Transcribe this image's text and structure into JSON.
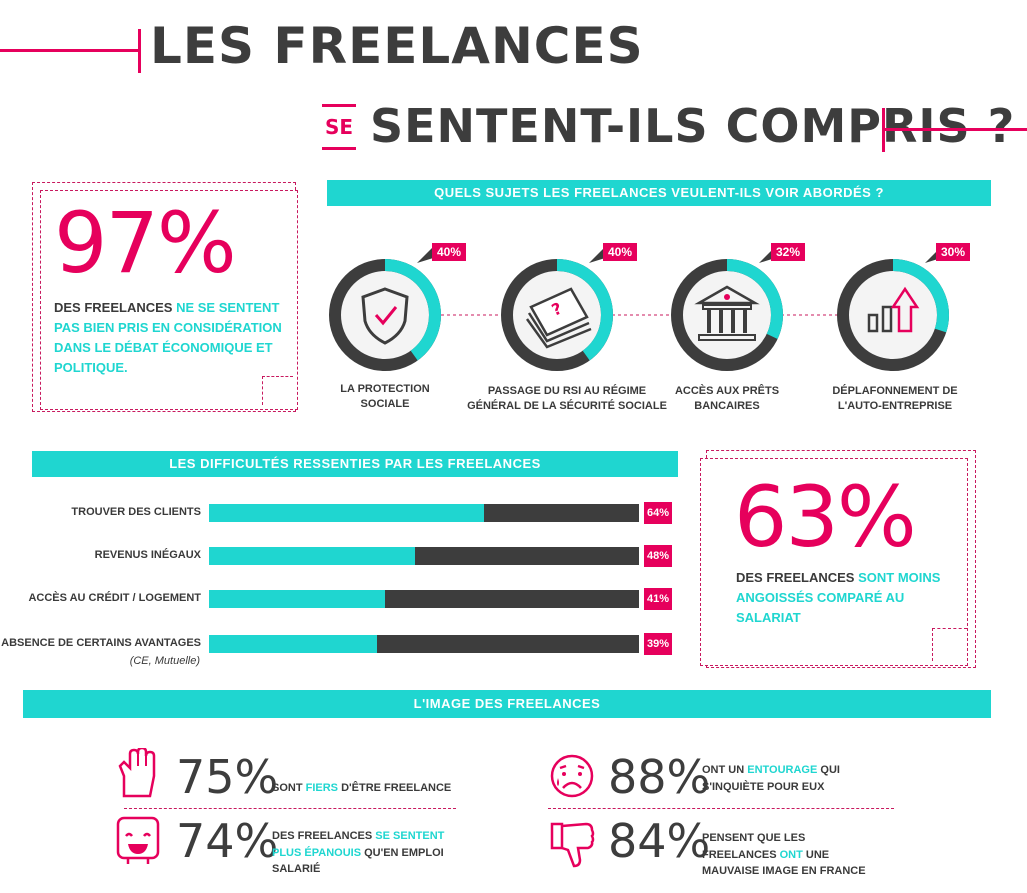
{
  "header": {
    "title_line1": "LES FREELANCES",
    "title_se": "SE",
    "title_line2": "SENTENT-ILS COMPRIS ?"
  },
  "stat97": {
    "value": "97%",
    "text_dark": "DES FREELANCES",
    "text_teal": "NE SE SENTENT PAS BIEN PRIS EN CONSIDÉRATION DANS LE DÉBAT ÉCONOMIQUE ET POLITIQUE."
  },
  "topics": {
    "banner": "QUELS SUJETS LES FREELANCES VEULENT-ILS VOIR ABORDÉS ?",
    "items": [
      {
        "label_line1": "LA PROTECTION",
        "label_line2": "SOCIALE",
        "pct": "40%",
        "icon": "shield-check-icon"
      },
      {
        "label_line1": "PASSAGE DU RSI AU RÉGIME",
        "label_line2": "GÉNÉRAL DE LA SÉCURITÉ SOCIALE",
        "pct": "40%",
        "icon": "documents-icon"
      },
      {
        "label_line1": "ACCÈS AUX PRÊTS",
        "label_line2": "BANCAIRES",
        "pct": "32%",
        "icon": "bank-icon"
      },
      {
        "label_line1": "DÉPLAFONNEMENT DE",
        "label_line2": "L'AUTO-ENTREPRISE",
        "pct": "30%",
        "icon": "growth-chart-icon"
      }
    ]
  },
  "difficulties": {
    "banner": "LES DIFFICULTÉS RESSENTIES PAR LES FREELANCES",
    "note": "(CE, Mutuelle)"
  },
  "chart_data": {
    "type": "bar",
    "title": "LES DIFFICULTÉS RESSENTIES PAR LES FREELANCES",
    "categories": [
      "TROUVER DES CLIENTS",
      "REVENUS INÉGAUX",
      "ACCÈS AU CRÉDIT / LOGEMENT",
      "ABSENCE DE CERTAINS AVANTAGES"
    ],
    "values": [
      64,
      48,
      41,
      39
    ],
    "value_labels": [
      "64%",
      "48%",
      "41%",
      "39%"
    ],
    "ylim": [
      0,
      100
    ],
    "colors": {
      "fill": "#1fd6d0",
      "track": "#3d3d3d",
      "badge": "#e6005c"
    }
  },
  "stat63": {
    "value": "63%",
    "text_dark": "DES FREELANCES",
    "text_teal": "SONT MOINS ANGOISSÉS COMPARÉ AU SALARIAT"
  },
  "image": {
    "banner": "L'IMAGE DES FREELANCES",
    "stats": [
      {
        "pct": "75%",
        "icon": "fist-icon",
        "parts": [
          "SONT ",
          "FIERS",
          " D'ÊTRE FREELANCE"
        ]
      },
      {
        "pct": "74%",
        "icon": "happy-face-icon",
        "parts": [
          "DES FREELANCES ",
          "SE SENTENT PLUS ÉPANOUIS",
          " QU'EN EMPLOI SALARIÉ"
        ]
      },
      {
        "pct": "88%",
        "icon": "worried-face-icon",
        "parts": [
          "ONT UN ",
          "ENTOURAGE",
          " QUI S'INQUIÈTE POUR EUX"
        ]
      },
      {
        "pct": "84%",
        "icon": "thumbs-down-icon",
        "parts": [
          "PENSENT QUE LES FREELANCES ",
          "ONT",
          " UNE MAUVAISE IMAGE EN FRANCE"
        ]
      }
    ]
  },
  "colors": {
    "accent_pink": "#e6005c",
    "accent_teal": "#1fd6d0",
    "dark": "#3d3d3d"
  }
}
